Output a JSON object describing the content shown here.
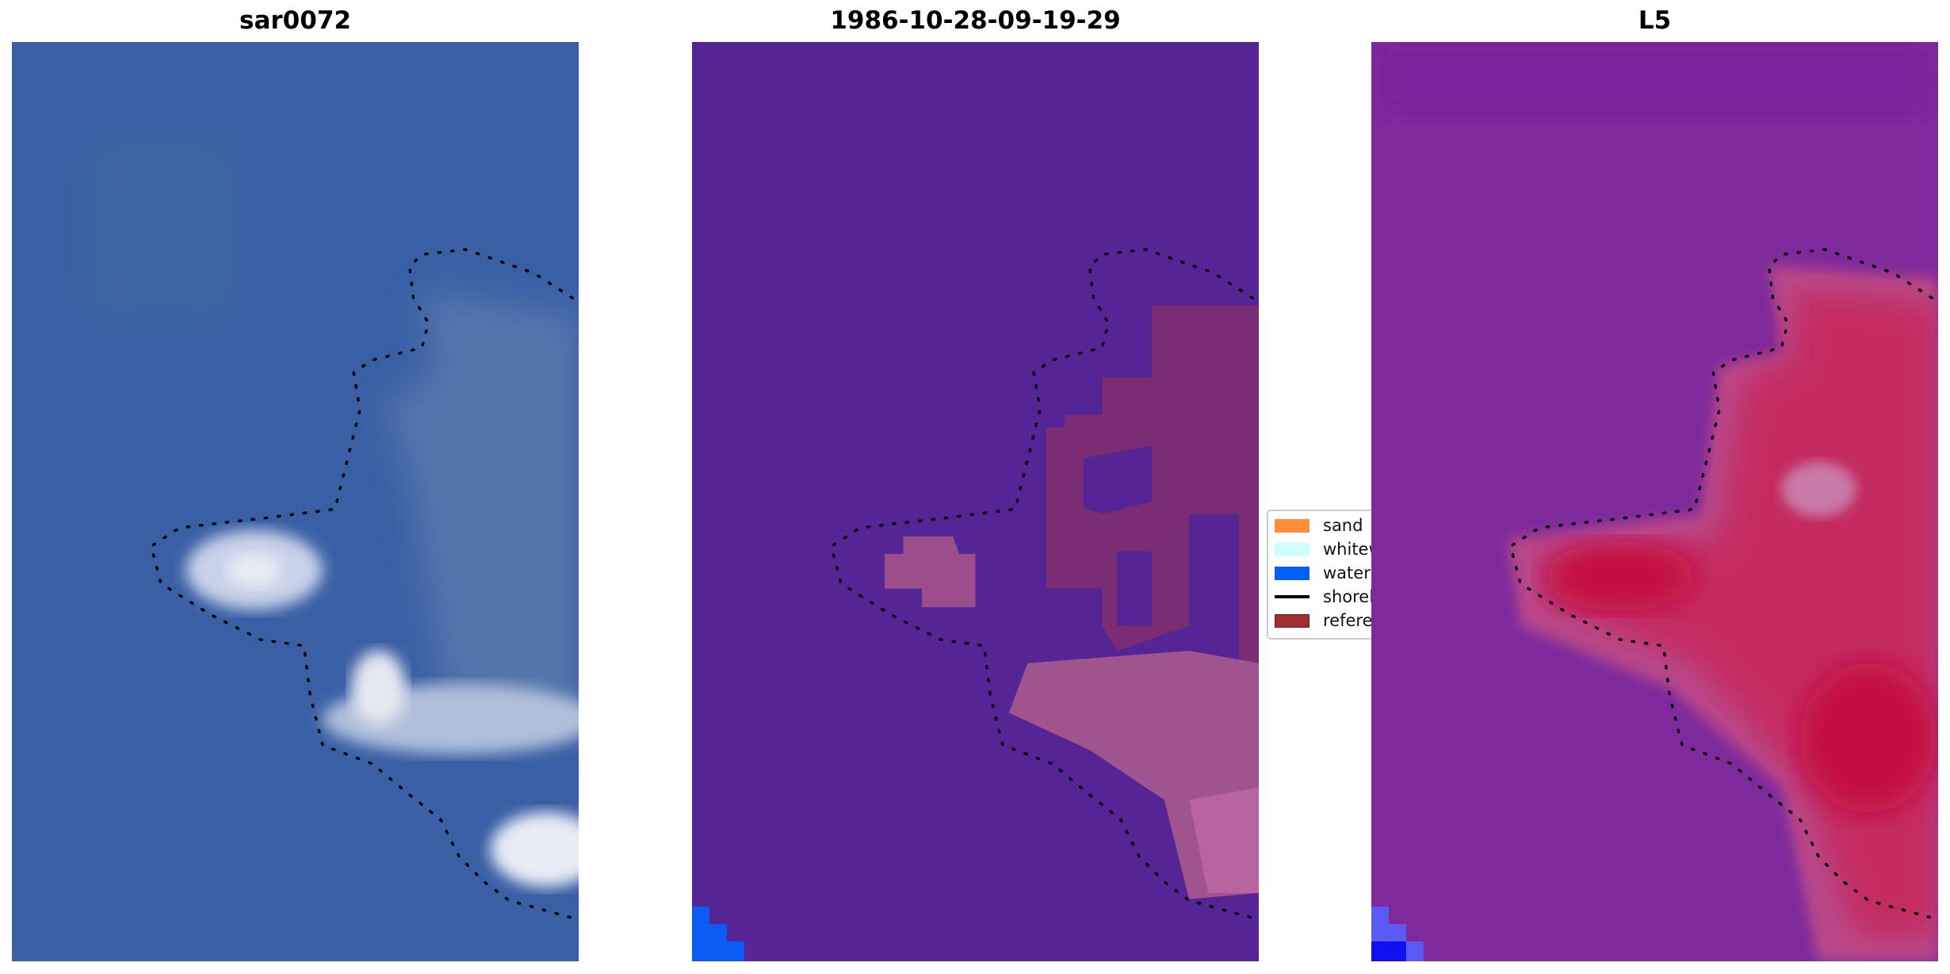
{
  "panels": [
    {
      "title": "sar0072",
      "kind": "rgb-image"
    },
    {
      "title": "1986-10-28-09-19-29",
      "kind": "classified-image"
    },
    {
      "title": "L5",
      "kind": "index-image"
    }
  ],
  "legend": {
    "items": [
      {
        "label": "sand",
        "color": "#ff8c3a"
      },
      {
        "label": "whitew",
        "color": "#ccffff"
      },
      {
        "label": "water",
        "color": "#0060ff"
      },
      {
        "label": "shoreli",
        "color": "#000000",
        "type": "line"
      },
      {
        "label": "referer",
        "color": "#a03030"
      }
    ]
  },
  "colors": {
    "rgb_water": "#3a5fa5",
    "class_background": "#552596",
    "class_reference": "#7a2d72",
    "index_background": "#7e2a9c",
    "index_high": "#c4103f"
  }
}
